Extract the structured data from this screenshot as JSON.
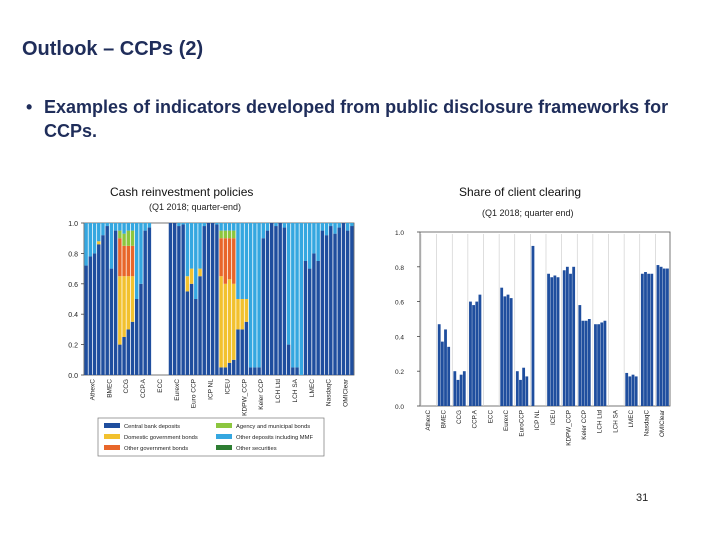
{
  "slide": {
    "title": "Outlook – CCPs (2)",
    "bullet": "•",
    "bullet_text": "Examples of indicators developed from public disclosure frameworks for CCPs.",
    "page_number": "31"
  },
  "colors": {
    "Central bank deposits": "#1f4e9e",
    "Domestic government bonds": "#f2c12e",
    "Other government bonds": "#e8662a",
    "Agency and municipal bonds": "#8cc63f",
    "Other deposits including MMF": "#35a7e0",
    "Other securities": "#2e7d32",
    "share_bar": "#1f4e9e"
  },
  "chart_data": [
    {
      "type": "bar",
      "stacked": true,
      "title": "Cash reinvestment policies",
      "subtitle": "(Q1 2018; quarter-end)",
      "ylim": [
        0,
        1
      ],
      "yticks": [
        "0.0",
        "0.2",
        "0.4",
        "0.6",
        "0.8",
        "1.0"
      ],
      "grid": false,
      "legend_position": "bottom",
      "categories": [
        "AthexC",
        "BMEC",
        "CCG",
        "CCP.A",
        "ECC",
        "EurexC",
        "Euro CCP",
        "ICP NL",
        "ICEU",
        "KDPW_CCP",
        "Keler CCP",
        "LCH Ltd",
        "LCH SA",
        "LMEC",
        "NasdaqC",
        "OMIClear"
      ],
      "series_names": [
        "Central bank deposits",
        "Domestic government bonds",
        "Other government bonds",
        "Agency and municipal bonds",
        "Other deposits including MMF",
        "Other securities"
      ],
      "bars": [
        [
          [
            0.72,
            0.0,
            0.0,
            0.0,
            0.28,
            0.0
          ],
          [
            0.78,
            0.0,
            0.0,
            0.0,
            0.22,
            0.0
          ],
          [
            0.8,
            0.0,
            0.0,
            0.0,
            0.2,
            0.0
          ],
          [
            0.86,
            0.02,
            0.0,
            0.0,
            0.12,
            0.0
          ]
        ],
        [
          [
            0.92,
            0.0,
            0.0,
            0.0,
            0.08,
            0.0
          ],
          [
            0.98,
            0.0,
            0.0,
            0.0,
            0.02,
            0.0
          ],
          [
            0.7,
            0.0,
            0.0,
            0.0,
            0.3,
            0.0
          ],
          [
            0.95,
            0.0,
            0.0,
            0.0,
            0.05,
            0.0
          ]
        ],
        [
          [
            0.2,
            0.45,
            0.25,
            0.05,
            0.05,
            0.0
          ],
          [
            0.25,
            0.4,
            0.2,
            0.08,
            0.07,
            0.0
          ],
          [
            0.3,
            0.35,
            0.2,
            0.1,
            0.05,
            0.0
          ],
          [
            0.35,
            0.3,
            0.2,
            0.1,
            0.05,
            0.0
          ]
        ],
        [
          [
            0.5,
            0.0,
            0.0,
            0.0,
            0.5,
            0.0
          ],
          [
            0.6,
            0.0,
            0.0,
            0.0,
            0.4,
            0.0
          ],
          [
            0.95,
            0.0,
            0.0,
            0.0,
            0.05,
            0.0
          ],
          [
            0.97,
            0.0,
            0.0,
            0.0,
            0.03,
            0.0
          ]
        ],
        [
          [
            0.0,
            0.0,
            0.0,
            0.0,
            0.0,
            0.0
          ],
          [
            0.0,
            0.0,
            0.0,
            0.0,
            0.0,
            0.0
          ],
          [
            0.0,
            0.0,
            0.0,
            0.0,
            0.0,
            0.0
          ],
          [
            0.0,
            0.0,
            0.0,
            0.0,
            0.0,
            0.0
          ]
        ],
        [
          [
            1.0,
            0.0,
            0.0,
            0.0,
            0.0,
            0.0
          ],
          [
            1.0,
            0.0,
            0.0,
            0.0,
            0.0,
            0.0
          ],
          [
            0.98,
            0.0,
            0.0,
            0.0,
            0.02,
            0.0
          ],
          [
            0.99,
            0.0,
            0.0,
            0.0,
            0.01,
            0.0
          ]
        ],
        [
          [
            0.55,
            0.1,
            0.0,
            0.0,
            0.35,
            0.0
          ],
          [
            0.6,
            0.1,
            0.0,
            0.0,
            0.3,
            0.0
          ],
          [
            0.5,
            0.0,
            0.0,
            0.0,
            0.5,
            0.0
          ],
          [
            0.65,
            0.05,
            0.0,
            0.0,
            0.3,
            0.0
          ]
        ],
        [
          [
            0.98,
            0.0,
            0.0,
            0.0,
            0.02,
            0.0
          ],
          [
            1.0,
            0.0,
            0.0,
            0.0,
            0.0,
            0.0
          ],
          [
            1.0,
            0.0,
            0.0,
            0.0,
            0.0,
            0.0
          ],
          [
            0.99,
            0.0,
            0.0,
            0.0,
            0.01,
            0.0
          ]
        ],
        [
          [
            0.05,
            0.6,
            0.25,
            0.05,
            0.05,
            0.0
          ],
          [
            0.05,
            0.55,
            0.3,
            0.05,
            0.05,
            0.0
          ],
          [
            0.08,
            0.55,
            0.27,
            0.05,
            0.05,
            0.0
          ],
          [
            0.1,
            0.5,
            0.3,
            0.05,
            0.05,
            0.0
          ]
        ],
        [
          [
            0.3,
            0.2,
            0.0,
            0.0,
            0.5,
            0.0
          ],
          [
            0.3,
            0.2,
            0.0,
            0.0,
            0.5,
            0.0
          ],
          [
            0.35,
            0.15,
            0.0,
            0.0,
            0.5,
            0.0
          ],
          [
            0.05,
            0.0,
            0.0,
            0.0,
            0.95,
            0.0
          ]
        ],
        [
          [
            0.05,
            0.0,
            0.0,
            0.0,
            0.95,
            0.0
          ],
          [
            0.05,
            0.0,
            0.0,
            0.0,
            0.95,
            0.0
          ],
          [
            0.9,
            0.0,
            0.0,
            0.0,
            0.1,
            0.0
          ],
          [
            0.95,
            0.0,
            0.0,
            0.0,
            0.05,
            0.0
          ]
        ],
        [
          [
            1.0,
            0.0,
            0.0,
            0.0,
            0.0,
            0.0
          ],
          [
            0.98,
            0.0,
            0.0,
            0.0,
            0.02,
            0.0
          ],
          [
            1.0,
            0.0,
            0.0,
            0.0,
            0.0,
            0.0
          ],
          [
            0.97,
            0.0,
            0.0,
            0.0,
            0.03,
            0.0
          ]
        ],
        [
          [
            0.2,
            0.0,
            0.0,
            0.0,
            0.8,
            0.0
          ],
          [
            0.05,
            0.0,
            0.0,
            0.0,
            0.95,
            0.0
          ],
          [
            0.05,
            0.0,
            0.0,
            0.0,
            0.95,
            0.0
          ],
          [
            0.0,
            0.0,
            0.0,
            0.0,
            1.0,
            0.0
          ]
        ],
        [
          [
            0.75,
            0.0,
            0.0,
            0.0,
            0.25,
            0.0
          ],
          [
            0.7,
            0.0,
            0.0,
            0.0,
            0.3,
            0.0
          ],
          [
            0.8,
            0.0,
            0.0,
            0.0,
            0.2,
            0.0
          ],
          [
            0.75,
            0.0,
            0.0,
            0.0,
            0.25,
            0.0
          ]
        ],
        [
          [
            0.95,
            0.0,
            0.0,
            0.0,
            0.05,
            0.0
          ],
          [
            0.92,
            0.0,
            0.0,
            0.0,
            0.08,
            0.0
          ],
          [
            0.98,
            0.0,
            0.0,
            0.0,
            0.02,
            0.0
          ],
          [
            0.93,
            0.0,
            0.0,
            0.0,
            0.07,
            0.0
          ]
        ],
        [
          [
            0.97,
            0.0,
            0.0,
            0.0,
            0.03,
            0.0
          ],
          [
            1.0,
            0.0,
            0.0,
            0.0,
            0.0,
            0.0
          ],
          [
            0.95,
            0.0,
            0.0,
            0.0,
            0.05,
            0.0
          ],
          [
            0.98,
            0.0,
            0.0,
            0.0,
            0.02,
            0.0
          ]
        ]
      ],
      "legend": [
        "Central bank deposits",
        "Agency and municipal bonds",
        "Domestic government bonds",
        "Other deposits including MMF",
        "Other government bonds",
        "Other securities"
      ]
    },
    {
      "type": "bar",
      "title": "Share of client clearing",
      "subtitle": "(Q1 2018; quarter end)",
      "ylim": [
        0,
        1
      ],
      "yticks": [
        "0.0",
        "0.2",
        "0.4",
        "0.6",
        "0.8",
        "1.0"
      ],
      "grid": false,
      "categories": [
        "AthexC",
        "BMEC",
        "CCG",
        "CCP.A",
        "ECC",
        "EurexC",
        "EuroCCP",
        "ICP NL",
        "ICEU",
        "KDPW_CCP",
        "Keler CCP",
        "LCH Ltd",
        "LCH SA",
        "LMEC",
        "NasdaqC",
        "OMIClear"
      ],
      "values": [
        [
          0.0,
          0.0,
          0.0,
          0.0
        ],
        [
          0.47,
          0.37,
          0.44,
          0.34
        ],
        [
          0.2,
          0.15,
          0.18,
          0.2
        ],
        [
          0.6,
          0.58,
          0.6,
          0.64
        ],
        [
          0.0,
          0.0,
          0.0,
          0.0
        ],
        [
          0.68,
          0.63,
          0.64,
          0.62
        ],
        [
          0.2,
          0.15,
          0.22,
          0.17
        ],
        [
          0.92,
          0.0,
          0.0,
          0.0
        ],
        [
          0.76,
          0.74,
          0.75,
          0.74
        ],
        [
          0.78,
          0.8,
          0.76,
          0.8
        ],
        [
          0.58,
          0.49,
          0.49,
          0.5
        ],
        [
          0.47,
          0.47,
          0.48,
          0.49
        ],
        [
          0.0,
          0.0,
          0.0,
          0.0
        ],
        [
          0.19,
          0.17,
          0.18,
          0.17
        ],
        [
          0.76,
          0.77,
          0.76,
          0.76
        ],
        [
          0.81,
          0.8,
          0.79,
          0.79
        ]
      ]
    }
  ]
}
